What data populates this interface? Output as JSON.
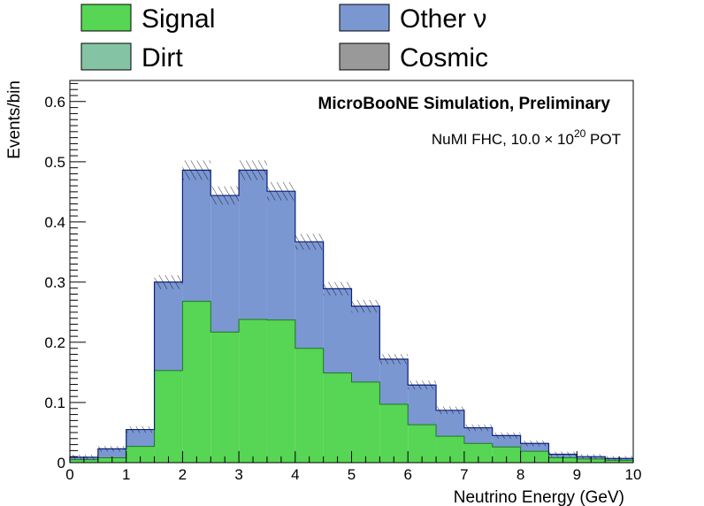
{
  "chart_data": {
    "type": "bar",
    "stacked": true,
    "histogram": true,
    "bin_edges": [
      0,
      0.5,
      1,
      1.5,
      2,
      2.5,
      3,
      3.5,
      4,
      4.5,
      5,
      5.5,
      6,
      6.5,
      7,
      7.5,
      8,
      8.5,
      9,
      9.5,
      10
    ],
    "series": [
      {
        "name": "Signal",
        "color": "#57d554",
        "values": [
          0.005,
          0.008,
          0.027,
          0.153,
          0.268,
          0.217,
          0.238,
          0.237,
          0.19,
          0.149,
          0.134,
          0.097,
          0.063,
          0.044,
          0.032,
          0.026,
          0.019,
          0.008,
          0.006,
          0.004
        ]
      },
      {
        "name": "Other ν",
        "color": "#7a97d2",
        "values": [
          0.004,
          0.015,
          0.028,
          0.147,
          0.218,
          0.227,
          0.248,
          0.214,
          0.177,
          0.14,
          0.126,
          0.075,
          0.066,
          0.043,
          0.026,
          0.019,
          0.013,
          0.006,
          0.004,
          0.003
        ]
      },
      {
        "name": "Dirt",
        "color": "#84c4a4",
        "values": [
          0,
          0,
          0,
          0,
          0,
          0,
          0,
          0,
          0,
          0,
          0,
          0,
          0,
          0,
          0,
          0,
          0,
          0,
          0,
          0
        ]
      },
      {
        "name": "Cosmic",
        "color": "#999999",
        "values": [
          0,
          0,
          0,
          0,
          0,
          0,
          0,
          0,
          0,
          0,
          0,
          0,
          0,
          0,
          0,
          0,
          0,
          0,
          0,
          0
        ]
      }
    ],
    "uncertainty_band": "hatched",
    "title": "MicroBooNE Simulation, Preliminary",
    "subtitle": {
      "main": "NuMI FHC, 10.0  × 10",
      "exponent": "20",
      "suffix": " POT"
    },
    "xlabel": "Neutrino Energy (GeV)",
    "ylabel": "Events/bin",
    "xlim": [
      0,
      10
    ],
    "ylim": [
      0,
      0.635
    ],
    "x_ticks": [
      "0",
      "1",
      "2",
      "3",
      "4",
      "5",
      "6",
      "7",
      "8",
      "9",
      "10"
    ],
    "y_ticks": [
      "0",
      "0.1",
      "0.2",
      "0.3",
      "0.4",
      "0.5",
      "0.6"
    ],
    "y_tick_values": [
      0,
      0.1,
      0.2,
      0.3,
      0.4,
      0.5,
      0.6
    ],
    "legend_placement": "top"
  }
}
